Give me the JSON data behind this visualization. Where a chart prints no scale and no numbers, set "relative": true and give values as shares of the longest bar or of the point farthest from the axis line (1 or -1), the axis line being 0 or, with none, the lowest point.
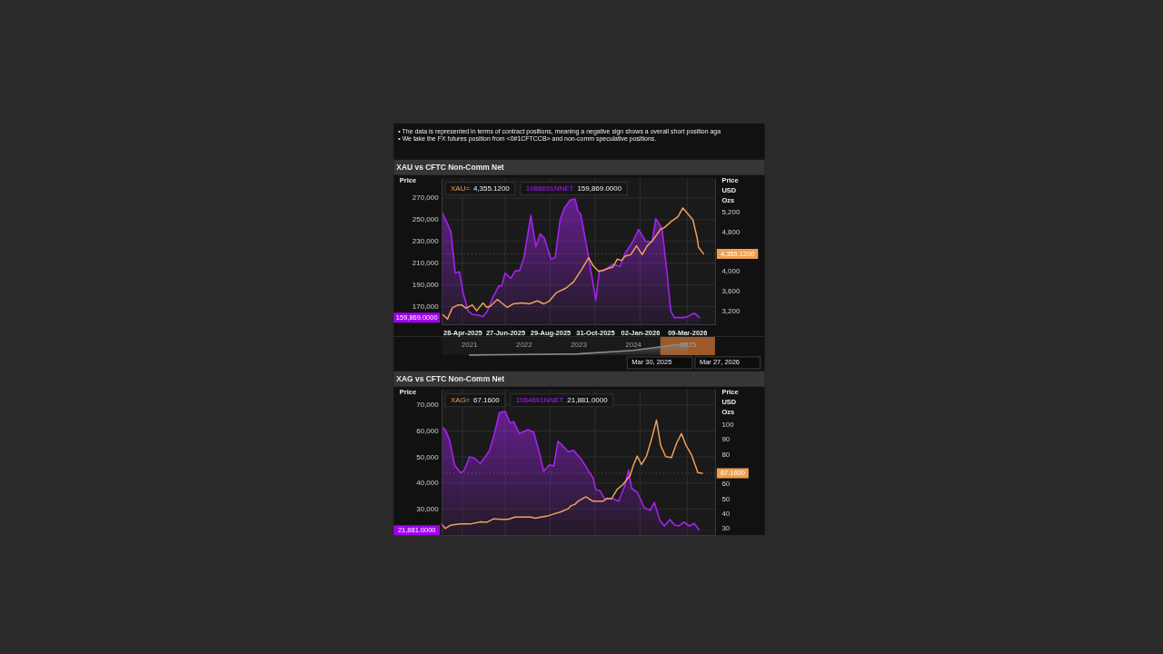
{
  "chart_data": [
    {
      "type": "other",
      "annotations": [
        "• The data is represented in terms of contract positions, meaning a negative sign shows a overall short position aga",
        "• We take the FX futures position from <0#1CFTCCB> and non-comm speculative positions."
      ]
    },
    {
      "type": "line",
      "title": "XAU vs CFTC Non-Comm Net",
      "ylabel": "Price",
      "y2label": "Price USD Ozs",
      "xlim": [
        "2025-03-30",
        "2026-04-17"
      ],
      "xticks": [
        {
          "value": "2025-04-28",
          "label": "28-Apr-2025"
        },
        {
          "value": "2025-06-27",
          "label": "27-Jun-2025"
        },
        {
          "value": "2025-08-29",
          "label": "29-Aug-2025"
        },
        {
          "value": "2025-10-31",
          "label": "31-Oct-2025"
        },
        {
          "value": "2026-01-02",
          "label": "02-Jan-2026"
        },
        {
          "value": "2026-03-09",
          "label": "09-Mar-2026"
        }
      ],
      "ylim": [
        153800,
        288600
      ],
      "yticks": [
        {
          "value": 170000,
          "label": "170,000"
        },
        {
          "value": 190000,
          "label": "190,000"
        },
        {
          "value": 210000,
          "label": "210,000"
        },
        {
          "value": 230000,
          "label": "230,000"
        },
        {
          "value": 250000,
          "label": "250,000"
        },
        {
          "value": 270000,
          "label": "270,000"
        }
      ],
      "y2lim": [
        2925,
        5905
      ],
      "y2ticks": [
        {
          "value": 3200,
          "label": "3,200"
        },
        {
          "value": 3600,
          "label": "3,600"
        },
        {
          "value": 4000,
          "label": "4,000"
        },
        {
          "value": 4800,
          "label": "4,800"
        },
        {
          "value": 5200,
          "label": "5,200"
        }
      ],
      "grid": true,
      "annotations": [
        "4,355.1200",
        "159,869.0000"
      ],
      "ref_lines": [
        {
          "axis": "y2",
          "value": 4355.12,
          "label": "4,355.1200",
          "color": "#f0a050",
          "line_style": "dotted"
        },
        {
          "axis": "y",
          "value": 159869,
          "label": "159,869.0000",
          "color": "#a000f0",
          "line_style": "dotted"
        }
      ],
      "series": [
        {
          "name": "XAU=",
          "type": "line",
          "axis": "y2",
          "color": "#eea15c",
          "x": [
            "2025-04-01",
            "2025-04-07",
            "2025-04-14",
            "2025-04-22",
            "2025-04-27",
            "2025-05-03",
            "2025-05-12",
            "2025-05-18",
            "2025-05-27",
            "2025-06-01",
            "2025-06-06",
            "2025-06-16",
            "2025-06-22",
            "2025-06-30",
            "2025-07-08",
            "2025-07-21",
            "2025-07-31",
            "2025-08-11",
            "2025-08-20",
            "2025-08-28",
            "2025-09-07",
            "2025-09-20",
            "2025-10-01",
            "2025-10-09",
            "2025-10-13",
            "2025-10-22",
            "2025-10-28",
            "2025-11-05",
            "2025-11-12",
            "2025-11-18",
            "2025-11-25",
            "2025-12-01",
            "2025-12-07",
            "2025-12-12",
            "2025-12-20",
            "2025-12-28",
            "2026-01-05",
            "2026-01-12",
            "2026-01-19",
            "2026-01-31",
            "2026-02-05",
            "2026-02-15",
            "2026-02-24",
            "2026-03-03",
            "2026-03-10",
            "2026-03-17",
            "2026-03-23",
            "2026-03-25",
            "2026-04-01"
          ],
          "values": [
            3120,
            3030,
            3260,
            3320,
            3320,
            3250,
            3320,
            3200,
            3360,
            3270,
            3290,
            3430,
            3360,
            3270,
            3340,
            3360,
            3340,
            3400,
            3340,
            3400,
            3570,
            3660,
            3790,
            3970,
            4060,
            4280,
            4120,
            4000,
            4030,
            4060,
            4090,
            4250,
            4220,
            4310,
            4340,
            4520,
            4340,
            4520,
            4620,
            4860,
            4890,
            5020,
            5110,
            5290,
            5170,
            5050,
            4680,
            4490,
            4355.12
          ]
        },
        {
          "name": "1088691NNET",
          "type": "area",
          "color": "#a323ee",
          "x": [
            "2025-03-31",
            "2025-04-06",
            "2025-04-12",
            "2025-04-18",
            "2025-04-24",
            "2025-04-29",
            "2025-05-06",
            "2025-05-12",
            "2025-05-22",
            "2025-05-27",
            "2025-06-02",
            "2025-06-10",
            "2025-06-18",
            "2025-06-22",
            "2025-06-27",
            "2025-07-05",
            "2025-07-11",
            "2025-07-17",
            "2025-07-23",
            "2025-07-27",
            "2025-08-02",
            "2025-08-09",
            "2025-08-15",
            "2025-08-21",
            "2025-08-30",
            "2025-09-05",
            "2025-09-12",
            "2025-09-18",
            "2025-09-26",
            "2025-10-03",
            "2025-10-07",
            "2025-10-11",
            "2025-10-22",
            "2025-11-01",
            "2025-11-06",
            "2025-11-12",
            "2025-11-25",
            "2025-12-05",
            "2025-12-12",
            "2025-12-22",
            "2025-12-31",
            "2026-01-10",
            "2026-01-19",
            "2026-01-24",
            "2026-01-29",
            "2026-02-02",
            "2026-02-09",
            "2026-02-14",
            "2026-02-19",
            "2026-03-04",
            "2026-03-10",
            "2026-03-19",
            "2026-03-27"
          ],
          "values": [
            256000,
            248000,
            239000,
            201000,
            202000,
            183000,
            166000,
            163000,
            162000,
            161000,
            166000,
            179000,
            189000,
            189000,
            201000,
            196000,
            203000,
            203000,
            214000,
            230000,
            254000,
            225000,
            237000,
            233000,
            214000,
            215000,
            250000,
            261000,
            268000,
            269000,
            258000,
            255000,
            215000,
            176000,
            203000,
            203000,
            209000,
            207000,
            219000,
            229000,
            241000,
            230000,
            230000,
            251000,
            246000,
            241000,
            200000,
            166000,
            160000,
            160000,
            161000,
            164000,
            159869
          ]
        }
      ]
    },
    {
      "type": "area",
      "relative": true,
      "categories": [
        "2021",
        "2022",
        "2023",
        "2024",
        "2025"
      ],
      "bands": [
        {
          "axis": "x",
          "from": "2025",
          "to": "2025",
          "color": "#b5652b"
        }
      ],
      "series": [
        {
          "color": "#8a8a8a",
          "values": [
            0,
            0.05,
            0.1,
            0.4,
            1
          ]
        }
      ],
      "annotations": [
        "Mar 30, 2025",
        "Mar 27, 2026"
      ]
    },
    {
      "type": "line",
      "title": "XAG vs CFTC Non-Comm Net",
      "ylabel": "Price",
      "y2label": "Price USD Ozs",
      "xlim": [
        "2025-03-30",
        "2026-04-17"
      ],
      "tick_labels": "y",
      "xticks": [
        {
          "value": "2025-04-28",
          "label": null
        },
        {
          "value": "2025-06-27",
          "label": null
        },
        {
          "value": "2025-08-29",
          "label": null
        },
        {
          "value": "2025-10-31",
          "label": null
        },
        {
          "value": "2026-01-02",
          "label": null
        },
        {
          "value": "2026-03-09",
          "label": null
        }
      ],
      "ylim": [
        20000,
        75900
      ],
      "yticks": [
        {
          "value": 30000,
          "label": "30,000"
        },
        {
          "value": 40000,
          "label": "40,000"
        },
        {
          "value": 50000,
          "label": "50,000"
        },
        {
          "value": 60000,
          "label": "60,000"
        },
        {
          "value": 70000,
          "label": "70,000"
        }
      ],
      "y2lim": [
        25.5,
        123.6
      ],
      "y2ticks": [
        30,
        40,
        50,
        60,
        80,
        90,
        100
      ],
      "grid": true,
      "annotations": [
        "67.1600",
        "21,881.0000"
      ],
      "ref_lines": [
        {
          "axis": "y2",
          "value": 67.16,
          "label": "67.1600",
          "color": "#f0a050",
          "line_style": "dotted"
        },
        {
          "axis": "y",
          "value": 21881,
          "label": "21,881.0000",
          "color": "#a000f0",
          "line_style": "dotted"
        }
      ],
      "series": [
        {
          "name": "XAG=",
          "type": "line",
          "axis": "y2",
          "color": "#eea15c",
          "x": [
            "2025-03-30",
            "2025-04-04",
            "2025-04-11",
            "2025-04-25",
            "2025-05-09",
            "2025-05-24",
            "2025-06-01",
            "2025-06-11",
            "2025-06-21",
            "2025-07-01",
            "2025-07-11",
            "2025-07-21",
            "2025-08-02",
            "2025-08-08",
            "2025-08-16",
            "2025-08-24",
            "2025-09-03",
            "2025-09-13",
            "2025-09-23",
            "2025-09-27",
            "2025-10-03",
            "2025-10-07",
            "2025-10-18",
            "2025-10-28",
            "2025-11-11",
            "2025-11-17",
            "2025-11-23",
            "2025-12-01",
            "2025-12-09",
            "2025-12-19",
            "2025-12-24",
            "2025-12-29",
            "2026-01-04",
            "2026-01-11",
            "2026-01-18",
            "2026-01-25",
            "2026-01-31",
            "2026-02-07",
            "2026-02-15",
            "2026-02-22",
            "2026-03-01",
            "2026-03-07",
            "2026-03-15",
            "2026-03-24",
            "2026-03-30"
          ],
          "values": [
            33.0,
            30.0,
            32.1,
            33.0,
            33.0,
            34.5,
            34.1,
            36.5,
            36.1,
            36.1,
            37.7,
            37.7,
            37.7,
            36.9,
            37.7,
            38.2,
            39.7,
            41.2,
            43.2,
            45.2,
            46.3,
            48.3,
            51.3,
            48.3,
            48.3,
            50.3,
            49.9,
            56.4,
            59.5,
            65.6,
            73.0,
            78.7,
            73.0,
            78.7,
            89.9,
            103.0,
            85.8,
            78.3,
            77.7,
            87.2,
            93.9,
            86.4,
            79.7,
            67.6,
            67.16
          ]
        },
        {
          "name": "1084691NNET",
          "type": "area",
          "color": "#a323ee",
          "x": [
            "2025-03-30",
            "2025-04-04",
            "2025-04-10",
            "2025-04-17",
            "2025-04-25",
            "2025-04-30",
            "2025-05-08",
            "2025-05-15",
            "2025-05-23",
            "2025-05-30",
            "2025-06-05",
            "2025-06-11",
            "2025-06-19",
            "2025-06-27",
            "2025-07-04",
            "2025-07-09",
            "2025-07-17",
            "2025-07-29",
            "2025-08-06",
            "2025-08-14",
            "2025-08-20",
            "2025-08-28",
            "2025-09-03",
            "2025-09-09",
            "2025-09-15",
            "2025-09-23",
            "2025-10-01",
            "2025-10-12",
            "2025-10-22",
            "2025-10-28",
            "2025-11-01",
            "2025-11-07",
            "2025-11-13",
            "2025-11-19",
            "2025-11-25",
            "2025-12-03",
            "2025-12-11",
            "2025-12-17",
            "2025-12-21",
            "2025-12-29",
            "2026-01-08",
            "2026-01-16",
            "2026-01-22",
            "2026-01-30",
            "2026-02-05",
            "2026-02-13",
            "2026-02-19",
            "2026-02-25",
            "2026-03-05",
            "2026-03-12",
            "2026-03-19",
            "2026-03-26"
          ],
          "values": [
            61500,
            60500,
            56500,
            47000,
            44000,
            44500,
            50000,
            49500,
            47500,
            50000,
            52500,
            58000,
            67000,
            67500,
            63000,
            63500,
            59000,
            60500,
            59500,
            51500,
            44500,
            47000,
            46500,
            56000,
            54500,
            52000,
            52500,
            49000,
            44500,
            42000,
            37500,
            37000,
            34000,
            34000,
            34000,
            33000,
            38500,
            45000,
            38000,
            36500,
            30500,
            29500,
            32500,
            25500,
            23500,
            26000,
            24000,
            23500,
            25000,
            23500,
            24500,
            21881
          ]
        }
      ]
    }
  ]
}
